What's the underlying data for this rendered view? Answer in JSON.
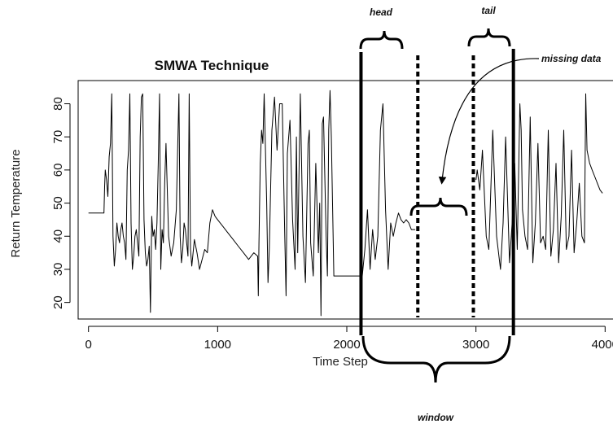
{
  "chart_data": {
    "type": "line",
    "title": "SMWA Technique",
    "xlabel": "Time Step",
    "ylabel": "Return Temperature",
    "xlim": [
      -80,
      4080
    ],
    "ylim": [
      15,
      87
    ],
    "x_ticks": [
      0,
      1000,
      2000,
      3000,
      4000
    ],
    "y_ticks": [
      20,
      30,
      40,
      50,
      60,
      70,
      80
    ],
    "grid": false,
    "line_color": "#000000",
    "series": [
      {
        "x": [
          0,
          120,
          125,
          130,
          140,
          150,
          160,
          170,
          180,
          190,
          200,
          210,
          220,
          230,
          240,
          250,
          260,
          270,
          280,
          290,
          300,
          310,
          320,
          330,
          340,
          350,
          360,
          370,
          380,
          390,
          400,
          410,
          420,
          430,
          440,
          450,
          460,
          470,
          480,
          490,
          500,
          510,
          520,
          530,
          540,
          550,
          560,
          570,
          580,
          590,
          600,
          620,
          640,
          660,
          680,
          690,
          700,
          710,
          720,
          730,
          740,
          750,
          760,
          770,
          780,
          790,
          800,
          820,
          840,
          860,
          880,
          900,
          920,
          940,
          950,
          960,
          970,
          980,
          1000,
          1040,
          1080,
          1120,
          1160,
          1200,
          1240,
          1280,
          1310,
          1315,
          1320,
          1330,
          1340,
          1350,
          1360,
          1380,
          1390,
          1400,
          1420,
          1440,
          1460,
          1480,
          1500,
          1520,
          1530,
          1540,
          1560,
          1580,
          1600,
          1610,
          1620,
          1640,
          1660,
          1680,
          1700,
          1710,
          1720,
          1740,
          1760,
          1780,
          1790,
          1800,
          1810,
          1820,
          1840,
          1850,
          1860,
          1870,
          1880,
          1900,
          2000,
          2080,
          2110,
          2120,
          2140,
          2160,
          2180,
          2200,
          2220,
          2240,
          2260,
          2280,
          2300,
          2320,
          2340,
          2360,
          2380,
          2400,
          2420,
          2440,
          2460,
          2480,
          2500,
          2530
        ],
        "y": [
          47,
          47,
          55,
          60,
          57,
          52,
          64,
          68,
          83,
          40,
          31,
          36,
          44,
          40,
          38,
          42,
          44,
          40,
          38,
          33,
          60,
          66,
          83,
          44,
          30,
          34,
          40,
          42,
          38,
          34,
          70,
          82,
          83,
          45,
          35,
          31,
          33,
          37,
          17,
          46,
          40,
          42,
          36,
          44,
          62,
          83,
          30,
          42,
          38,
          56,
          68,
          40,
          34,
          38,
          48,
          66,
          83,
          40,
          32,
          36,
          44,
          42,
          38,
          34,
          83,
          36,
          31,
          39,
          35,
          30,
          33,
          36,
          35,
          44,
          46,
          48,
          47,
          46,
          45,
          43,
          41,
          39,
          37,
          35,
          33,
          35,
          34,
          22,
          38,
          62,
          72,
          68,
          83,
          50,
          26,
          36,
          72,
          82,
          66,
          80,
          80,
          40,
          22,
          65,
          75,
          45,
          30,
          70,
          35,
          83,
          40,
          26,
          68,
          72,
          38,
          28,
          62,
          35,
          50,
          16,
          74,
          76,
          40,
          28,
          72,
          84,
          70,
          28,
          28,
          28,
          28,
          28,
          36,
          48,
          30,
          42,
          33,
          40,
          72,
          80,
          48,
          30,
          44,
          40,
          44,
          47,
          45,
          44,
          45,
          44,
          42,
          42
        ]
      },
      {
        "x": [
          3000,
          3010,
          3030,
          3050,
          3080,
          3100,
          3130,
          3160,
          3190,
          3210,
          3230,
          3260,
          3280,
          3300,
          3320,
          3340,
          3350,
          3360,
          3380,
          3400,
          3420,
          3440,
          3460,
          3480,
          3500,
          3520,
          3540,
          3560,
          3580,
          3600,
          3620,
          3640,
          3660,
          3680,
          3700,
          3720,
          3740,
          3760,
          3780,
          3800,
          3820,
          3840,
          3850,
          3860,
          3880,
          3900,
          3920,
          3940,
          3960,
          3980
        ],
        "y": [
          57,
          60,
          54,
          66,
          40,
          36,
          72,
          40,
          30,
          44,
          70,
          32,
          44,
          62,
          36,
          80,
          72,
          48,
          40,
          36,
          76,
          32,
          44,
          68,
          38,
          40,
          36,
          72,
          34,
          42,
          62,
          32,
          46,
          72,
          36,
          40,
          66,
          35,
          44,
          56,
          40,
          38,
          83,
          66,
          62,
          60,
          58,
          56,
          54,
          53
        ]
      }
    ],
    "annotations": {
      "head": "head",
      "tail": "tail",
      "missing": "missing data",
      "window": "window"
    },
    "window_lines": {
      "window_start": 2110,
      "head_end": 2550,
      "tail_start": 2980,
      "window_end": 3290,
      "gap_start": 2540,
      "gap_end": 2970
    }
  }
}
